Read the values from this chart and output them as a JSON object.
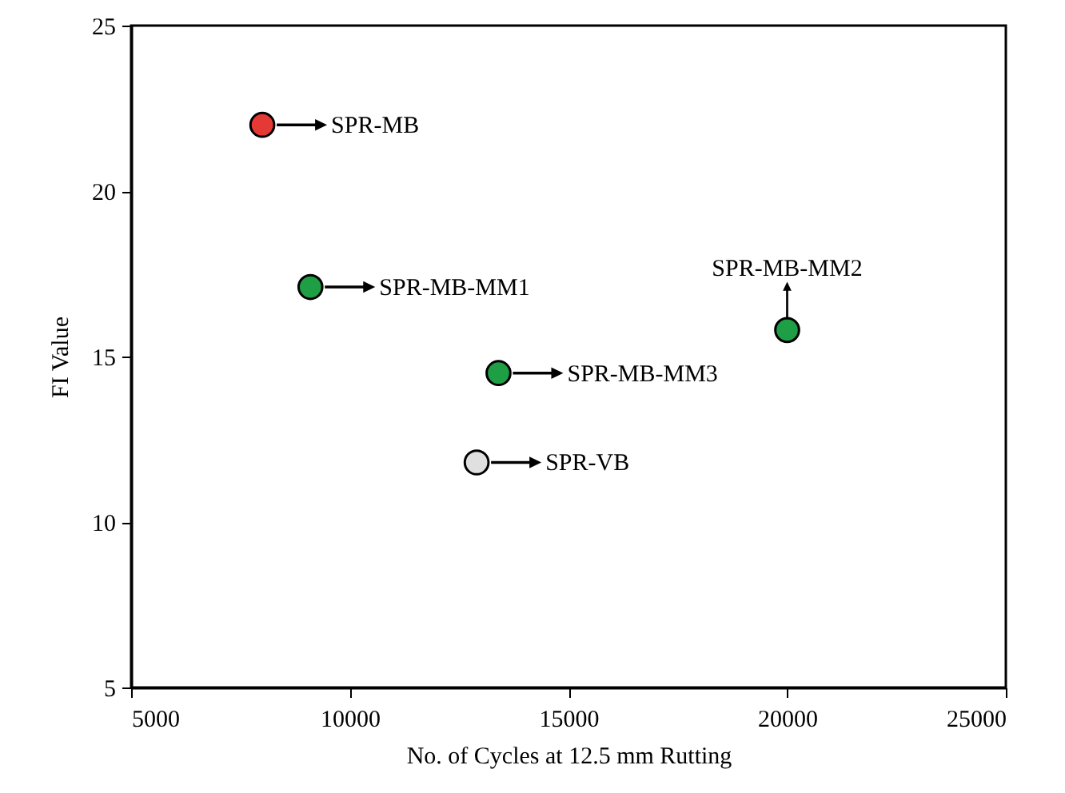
{
  "chart_data": {
    "type": "scatter",
    "xlabel": "No. of Cycles at 12.5 mm Rutting",
    "ylabel": "FI Value",
    "x": [
      8000,
      9100,
      20000,
      13400,
      12900
    ],
    "values": [
      22,
      17.1,
      15.8,
      14.5,
      11.8
    ],
    "colors": [
      "#e53935",
      "#1e9e45",
      "#1e9e45",
      "#1e9e45",
      "#e0e0e0"
    ],
    "marker": "circle",
    "xlim": [
      5000,
      25000
    ],
    "xticks": [
      5000,
      10000,
      15000,
      20000,
      25000
    ],
    "ylim": [
      5,
      25
    ],
    "yticks": [
      5,
      10,
      15,
      20,
      25
    ],
    "grid": false,
    "annotations": [
      {
        "text": "SPR-MB",
        "x": 8000,
        "y": 22
      },
      {
        "text": "SPR-MB-MM1",
        "x": 9100,
        "y": 17.1
      },
      {
        "text": "SPR-MB-MM2",
        "x": 20000,
        "y": 15.8
      },
      {
        "text": "SPR-MB-MM3",
        "x": 13400,
        "y": 14.5
      },
      {
        "text": "SPR-VB",
        "x": 12900,
        "y": 11.8
      }
    ]
  }
}
